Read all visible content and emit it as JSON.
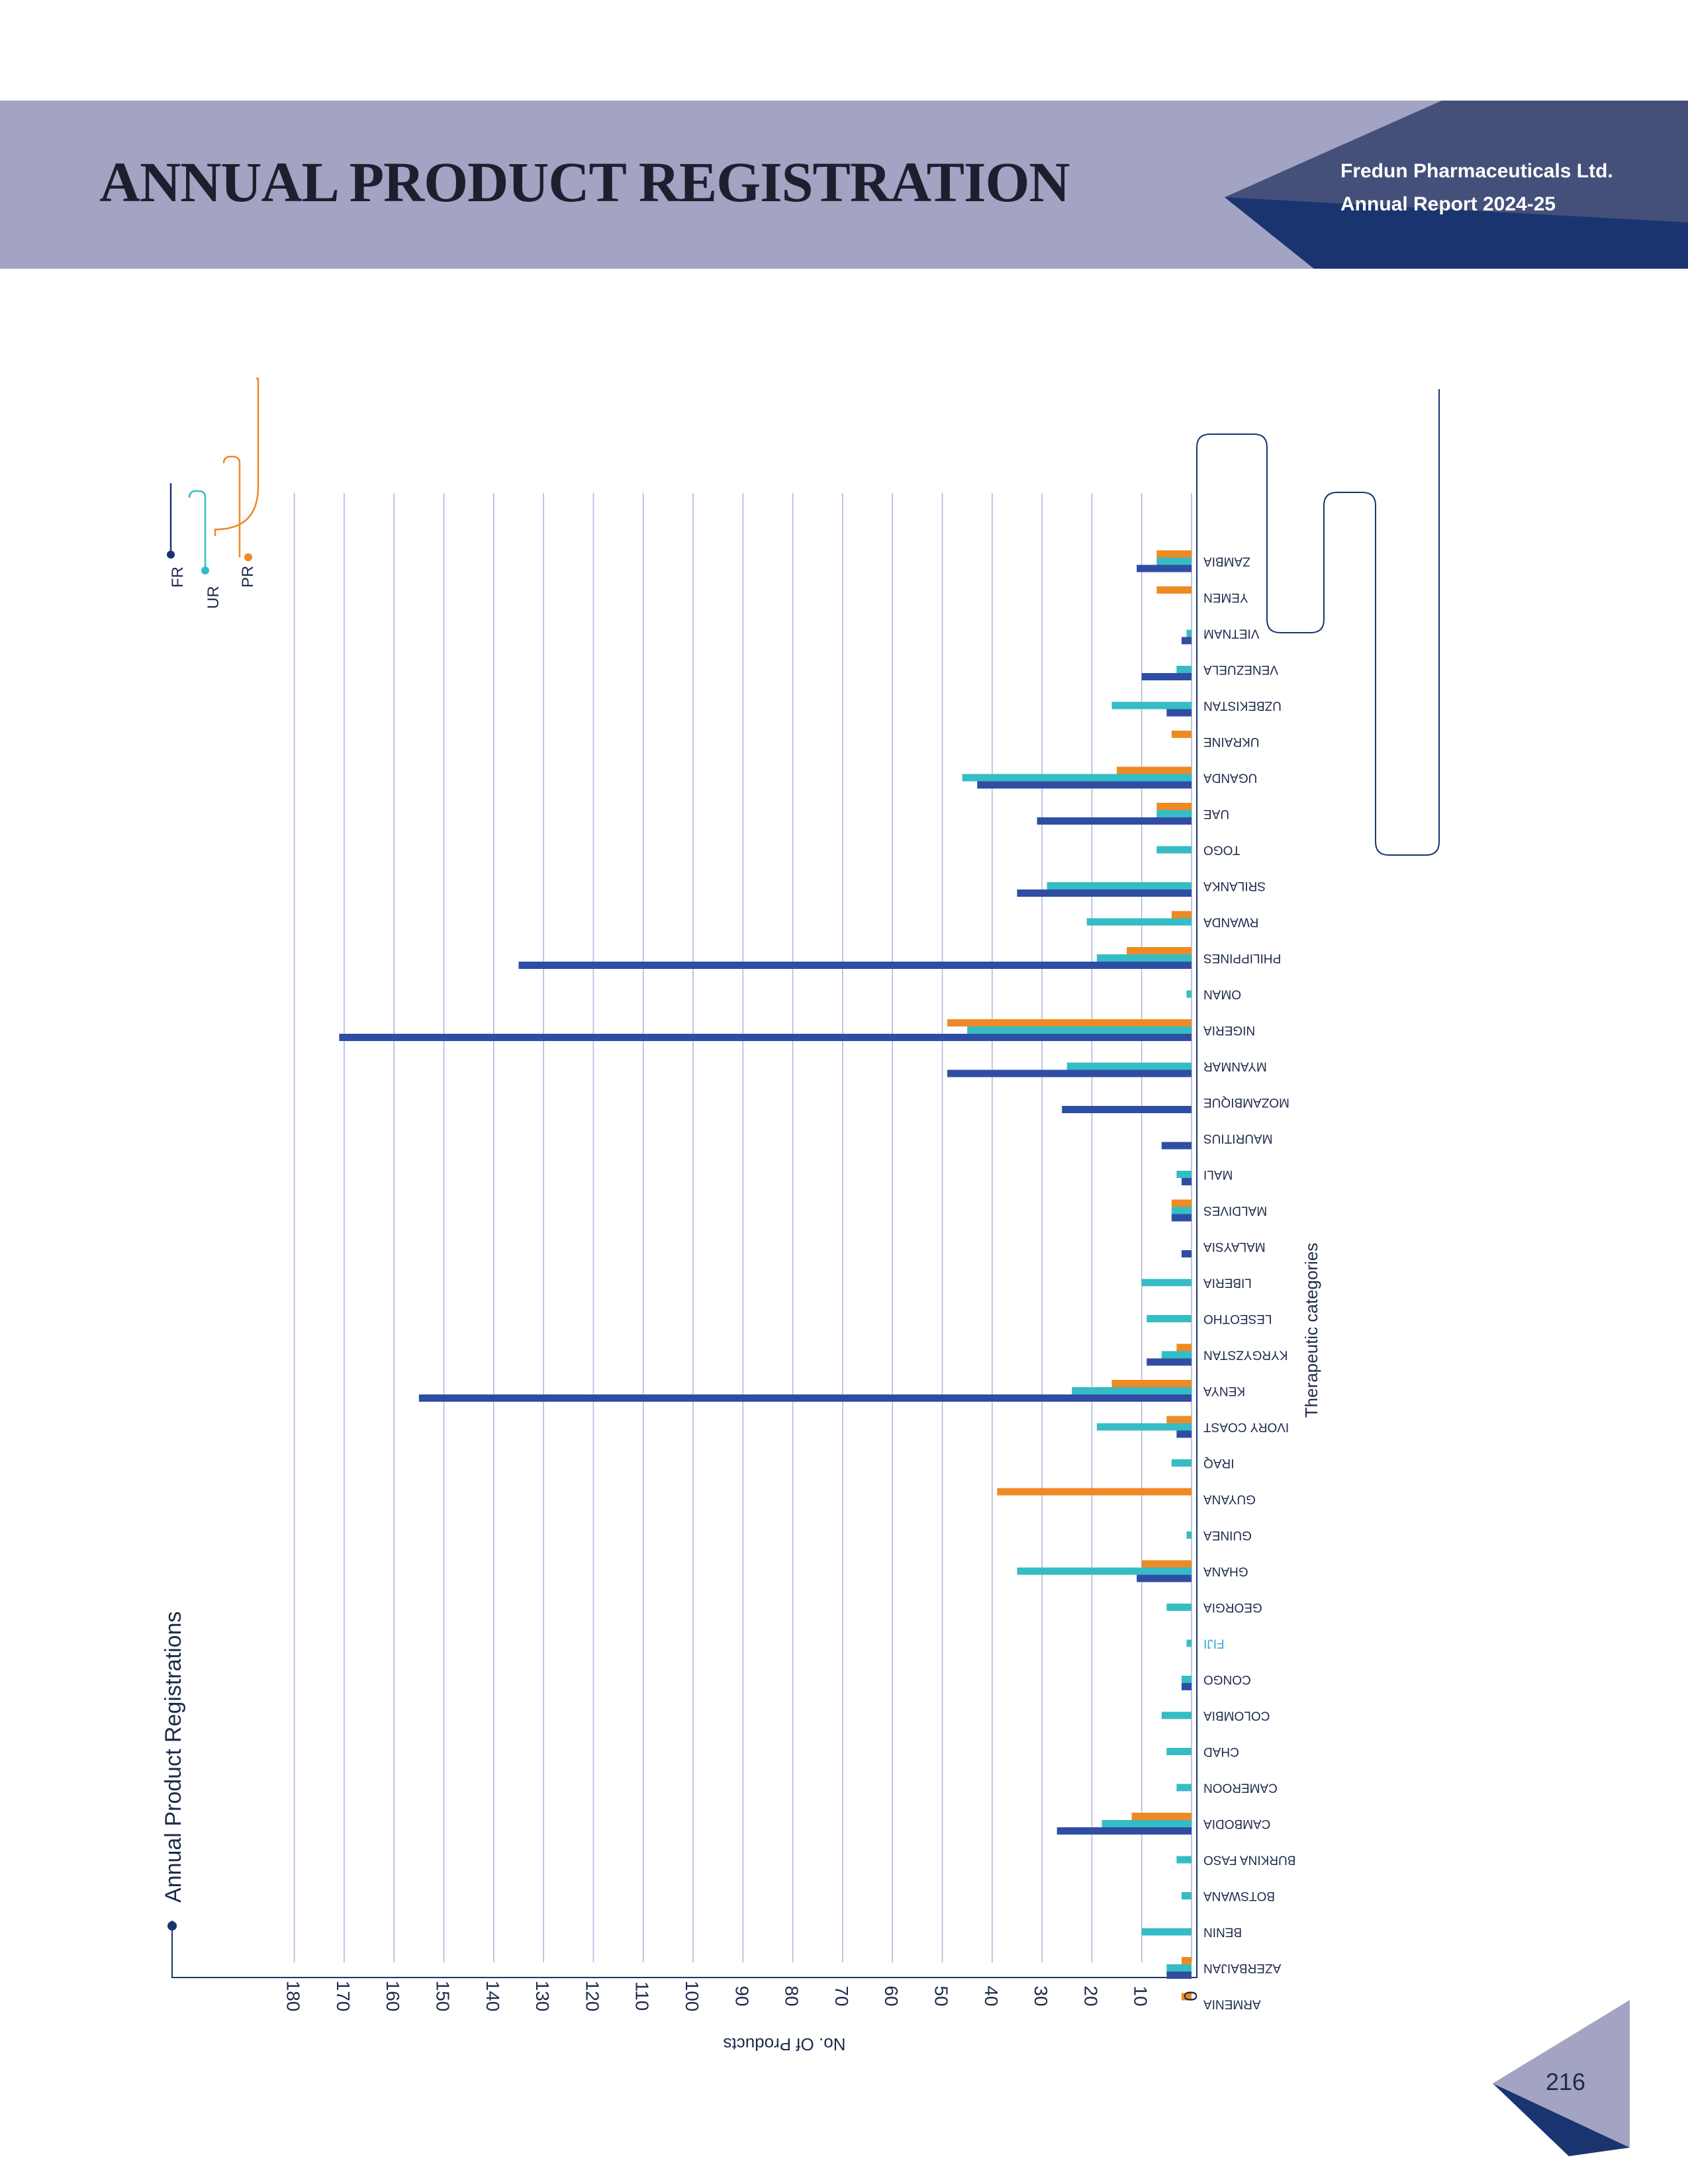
{
  "header": {
    "title": "ANNUAL PRODUCT REGISTRATION",
    "company": "Fredun Pharmaceuticals Ltd.",
    "report": "Annual Report 2024-25"
  },
  "page_number": "216",
  "colors": {
    "band": "#a3a3c3",
    "navy": "#1a3470",
    "FR": "#2f4ea3",
    "UR": "#35bcc4",
    "PR": "#ee8a24"
  },
  "chart_data": {
    "type": "bar",
    "orientation": "horizontal, rotated 180 degrees on page",
    "title": "Annual Product Registrations",
    "xlabel": "No. Of Products",
    "ylabel": "Therapeutic categories",
    "xlim": [
      0,
      180
    ],
    "xticks": [
      0,
      10,
      20,
      30,
      40,
      50,
      60,
      70,
      80,
      90,
      100,
      110,
      120,
      130,
      140,
      150,
      160,
      170,
      180
    ],
    "grid": true,
    "legend": "top-left",
    "categories": [
      "ARMENIA",
      "AZERBAIJAN",
      "BENIN",
      "BOTSWANA",
      "BURKINA FASO",
      "CAMBODIA",
      "CAMEROON",
      "CHAD",
      "COLOMBIA",
      "CONGO",
      "FIJI",
      "GEORGIA",
      "GHANA",
      "GUINEA",
      "GUYANA",
      "IRAQ",
      "IVORY COAST",
      "KENYA",
      "KYRGYZSTAN",
      "LESEOTHO",
      "LIBERIA",
      "MALAYSIA",
      "MALDIVES",
      "MALI",
      "MAURITIUS",
      "MOZAMBIQUE",
      "MYANMAR",
      "NIGERIA",
      "OMAN",
      "PHILIPPINES",
      "RWANDA",
      "SRILANKA",
      "TOGO",
      "UAE",
      "UGANDA",
      "UKRAINE",
      "UZBEKISTAN",
      "VENEZUELA",
      "VIETNAM",
      "YEMEN",
      "ZAMBIA"
    ],
    "series": [
      {
        "name": "FR",
        "values": [
          0,
          5,
          0,
          0,
          0,
          27,
          0,
          0,
          0,
          2,
          0,
          0,
          11,
          0,
          0,
          0,
          3,
          155,
          9,
          0,
          0,
          2,
          4,
          2,
          6,
          26,
          49,
          171,
          0,
          135,
          0,
          35,
          0,
          31,
          43,
          0,
          5,
          10,
          2,
          0,
          11
        ]
      },
      {
        "name": "UR",
        "values": [
          0,
          5,
          10,
          2,
          3,
          18,
          3,
          5,
          6,
          2,
          1,
          5,
          35,
          1,
          0,
          4,
          19,
          24,
          6,
          9,
          10,
          0,
          4,
          3,
          0,
          0,
          25,
          45,
          1,
          19,
          21,
          29,
          7,
          7,
          46,
          0,
          16,
          3,
          1,
          0,
          7
        ]
      },
      {
        "name": "PR",
        "values": [
          2,
          2,
          0,
          0,
          0,
          12,
          0,
          0,
          0,
          0,
          0,
          0,
          10,
          0,
          39,
          0,
          5,
          16,
          3,
          0,
          0,
          0,
          4,
          0,
          0,
          0,
          0,
          49,
          0,
          13,
          4,
          0,
          0,
          7,
          15,
          4,
          0,
          0,
          0,
          7,
          7
        ]
      }
    ]
  }
}
